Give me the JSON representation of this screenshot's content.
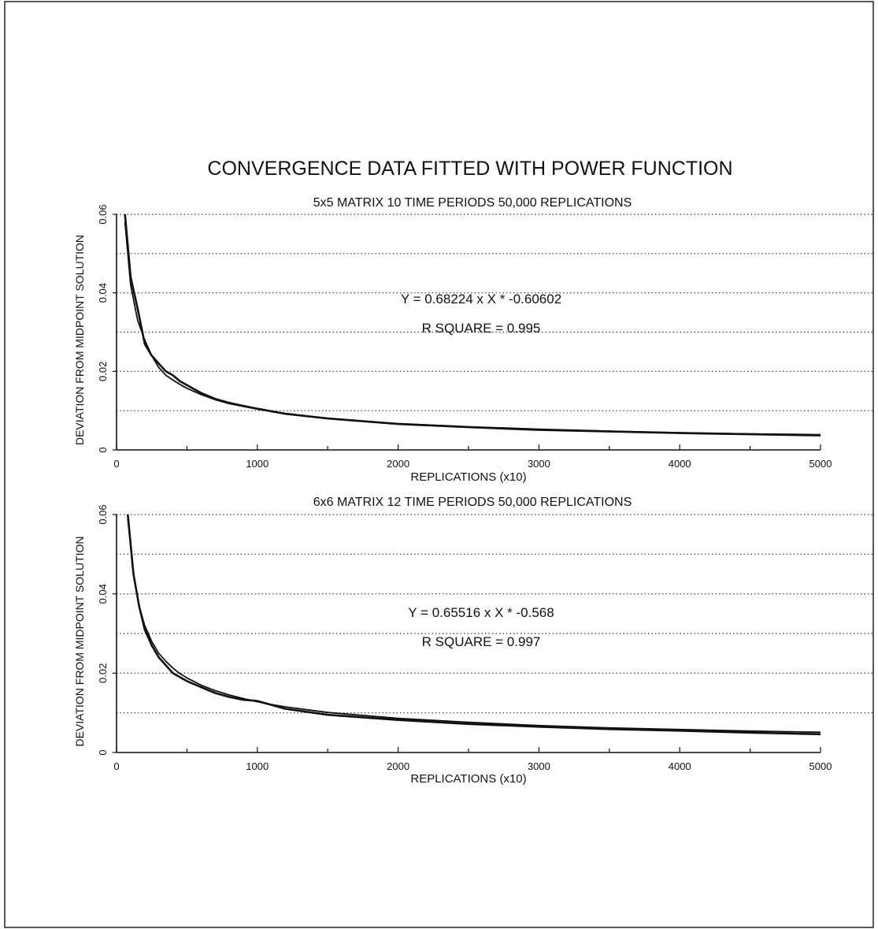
{
  "main_title": "CONVERGENCE DATA FITTED WITH POWER FUNCTION",
  "chart_data": [
    {
      "type": "line",
      "title": "5x5 MATRIX 10 TIME PERIODS  50,000 REPLICATIONS",
      "xlabel": "REPLICATIONS (x10)",
      "ylabel": "DEVIATION FROM MIDPOINT SOLUTION",
      "xlim": [
        0,
        5000
      ],
      "ylim": [
        0,
        0.06
      ],
      "xticks": [
        0,
        1000,
        2000,
        3000,
        4000,
        5000
      ],
      "xtick_labels": [
        "0",
        "1000",
        "2000",
        "3000",
        "4000",
        "5000"
      ],
      "yticks": [
        0,
        0.02,
        0.04,
        0.06
      ],
      "ytick_labels": [
        "0",
        "0.02",
        "0.04",
        "0.06"
      ],
      "grid": "horizontal dotted",
      "annotations": [
        "Y = 0.68224 x X * -0.60602",
        "R SQUARE = 0.995"
      ],
      "series": [
        {
          "role": "observed",
          "x": [
            60,
            100,
            150,
            200,
            250,
            300,
            350,
            400,
            450,
            500,
            600,
            700,
            800,
            900,
            1000,
            1200,
            1500,
            2000,
            2500,
            3000,
            3500,
            4000,
            4500,
            5000
          ],
          "y": [
            0.06,
            0.044,
            0.036,
            0.027,
            0.024,
            0.022,
            0.02,
            0.019,
            0.0175,
            0.0165,
            0.0145,
            0.013,
            0.012,
            0.0112,
            0.0105,
            0.0092,
            0.008,
            0.0066,
            0.0058,
            0.0051,
            0.0047,
            0.0043,
            0.004,
            0.0037
          ]
        },
        {
          "role": "fitted",
          "x": [
            60,
            100,
            150,
            200,
            250,
            300,
            350,
            400,
            450,
            500,
            600,
            700,
            800,
            900,
            1000,
            1200,
            1500,
            2000,
            2500,
            3000,
            3500,
            4000,
            4500,
            5000
          ],
          "y": [
            0.058,
            0.042,
            0.033,
            0.028,
            0.024,
            0.021,
            0.019,
            0.0178,
            0.0167,
            0.0157,
            0.0141,
            0.0128,
            0.0118,
            0.0111,
            0.0104,
            0.0093,
            0.008,
            0.0067,
            0.0059,
            0.0053,
            0.0048,
            0.0044,
            0.0041,
            0.0039
          ]
        }
      ]
    },
    {
      "type": "line",
      "title": "6x6 MATRIX 12 TIME PERIODS  50,000 REPLICATIONS",
      "xlabel": "REPLICATIONS (x10)",
      "ylabel": "DEVIATION FROM MIDPOINT SOLUTION",
      "xlim": [
        0,
        5000
      ],
      "ylim": [
        0,
        0.06
      ],
      "xticks": [
        0,
        1000,
        2000,
        3000,
        4000,
        5000
      ],
      "xtick_labels": [
        "0",
        "1000",
        "2000",
        "3000",
        "4000",
        "5000"
      ],
      "yticks": [
        0,
        0.02,
        0.04,
        0.06
      ],
      "ytick_labels": [
        "0",
        "0.02",
        "0.04",
        "0.06"
      ],
      "grid": "horizontal dotted",
      "annotations": [
        "Y = 0.65516 x X * -0.568",
        "R SQUARE = 0.997"
      ],
      "series": [
        {
          "role": "observed",
          "x": [
            80,
            120,
            160,
            200,
            250,
            300,
            350,
            400,
            450,
            500,
            600,
            700,
            800,
            900,
            1000,
            1100,
            1200,
            1500,
            2000,
            2500,
            3000,
            3500,
            4000,
            4500,
            5000
          ],
          "y": [
            0.06,
            0.045,
            0.037,
            0.031,
            0.027,
            0.024,
            0.022,
            0.02,
            0.019,
            0.018,
            0.0165,
            0.015,
            0.014,
            0.0133,
            0.013,
            0.012,
            0.011,
            0.0095,
            0.0082,
            0.0072,
            0.0065,
            0.0059,
            0.0055,
            0.005,
            0.0046
          ]
        },
        {
          "role": "fitted",
          "x": [
            80,
            120,
            160,
            200,
            250,
            300,
            350,
            400,
            450,
            500,
            600,
            700,
            800,
            900,
            1000,
            1100,
            1200,
            1500,
            2000,
            2500,
            3000,
            3500,
            4000,
            4500,
            5000
          ],
          "y": [
            0.059,
            0.045,
            0.037,
            0.032,
            0.028,
            0.025,
            0.023,
            0.0213,
            0.0199,
            0.0188,
            0.017,
            0.0156,
            0.0145,
            0.0136,
            0.0128,
            0.0121,
            0.0115,
            0.0101,
            0.0086,
            0.0076,
            0.0068,
            0.0062,
            0.0058,
            0.0054,
            0.0051
          ]
        }
      ]
    }
  ]
}
